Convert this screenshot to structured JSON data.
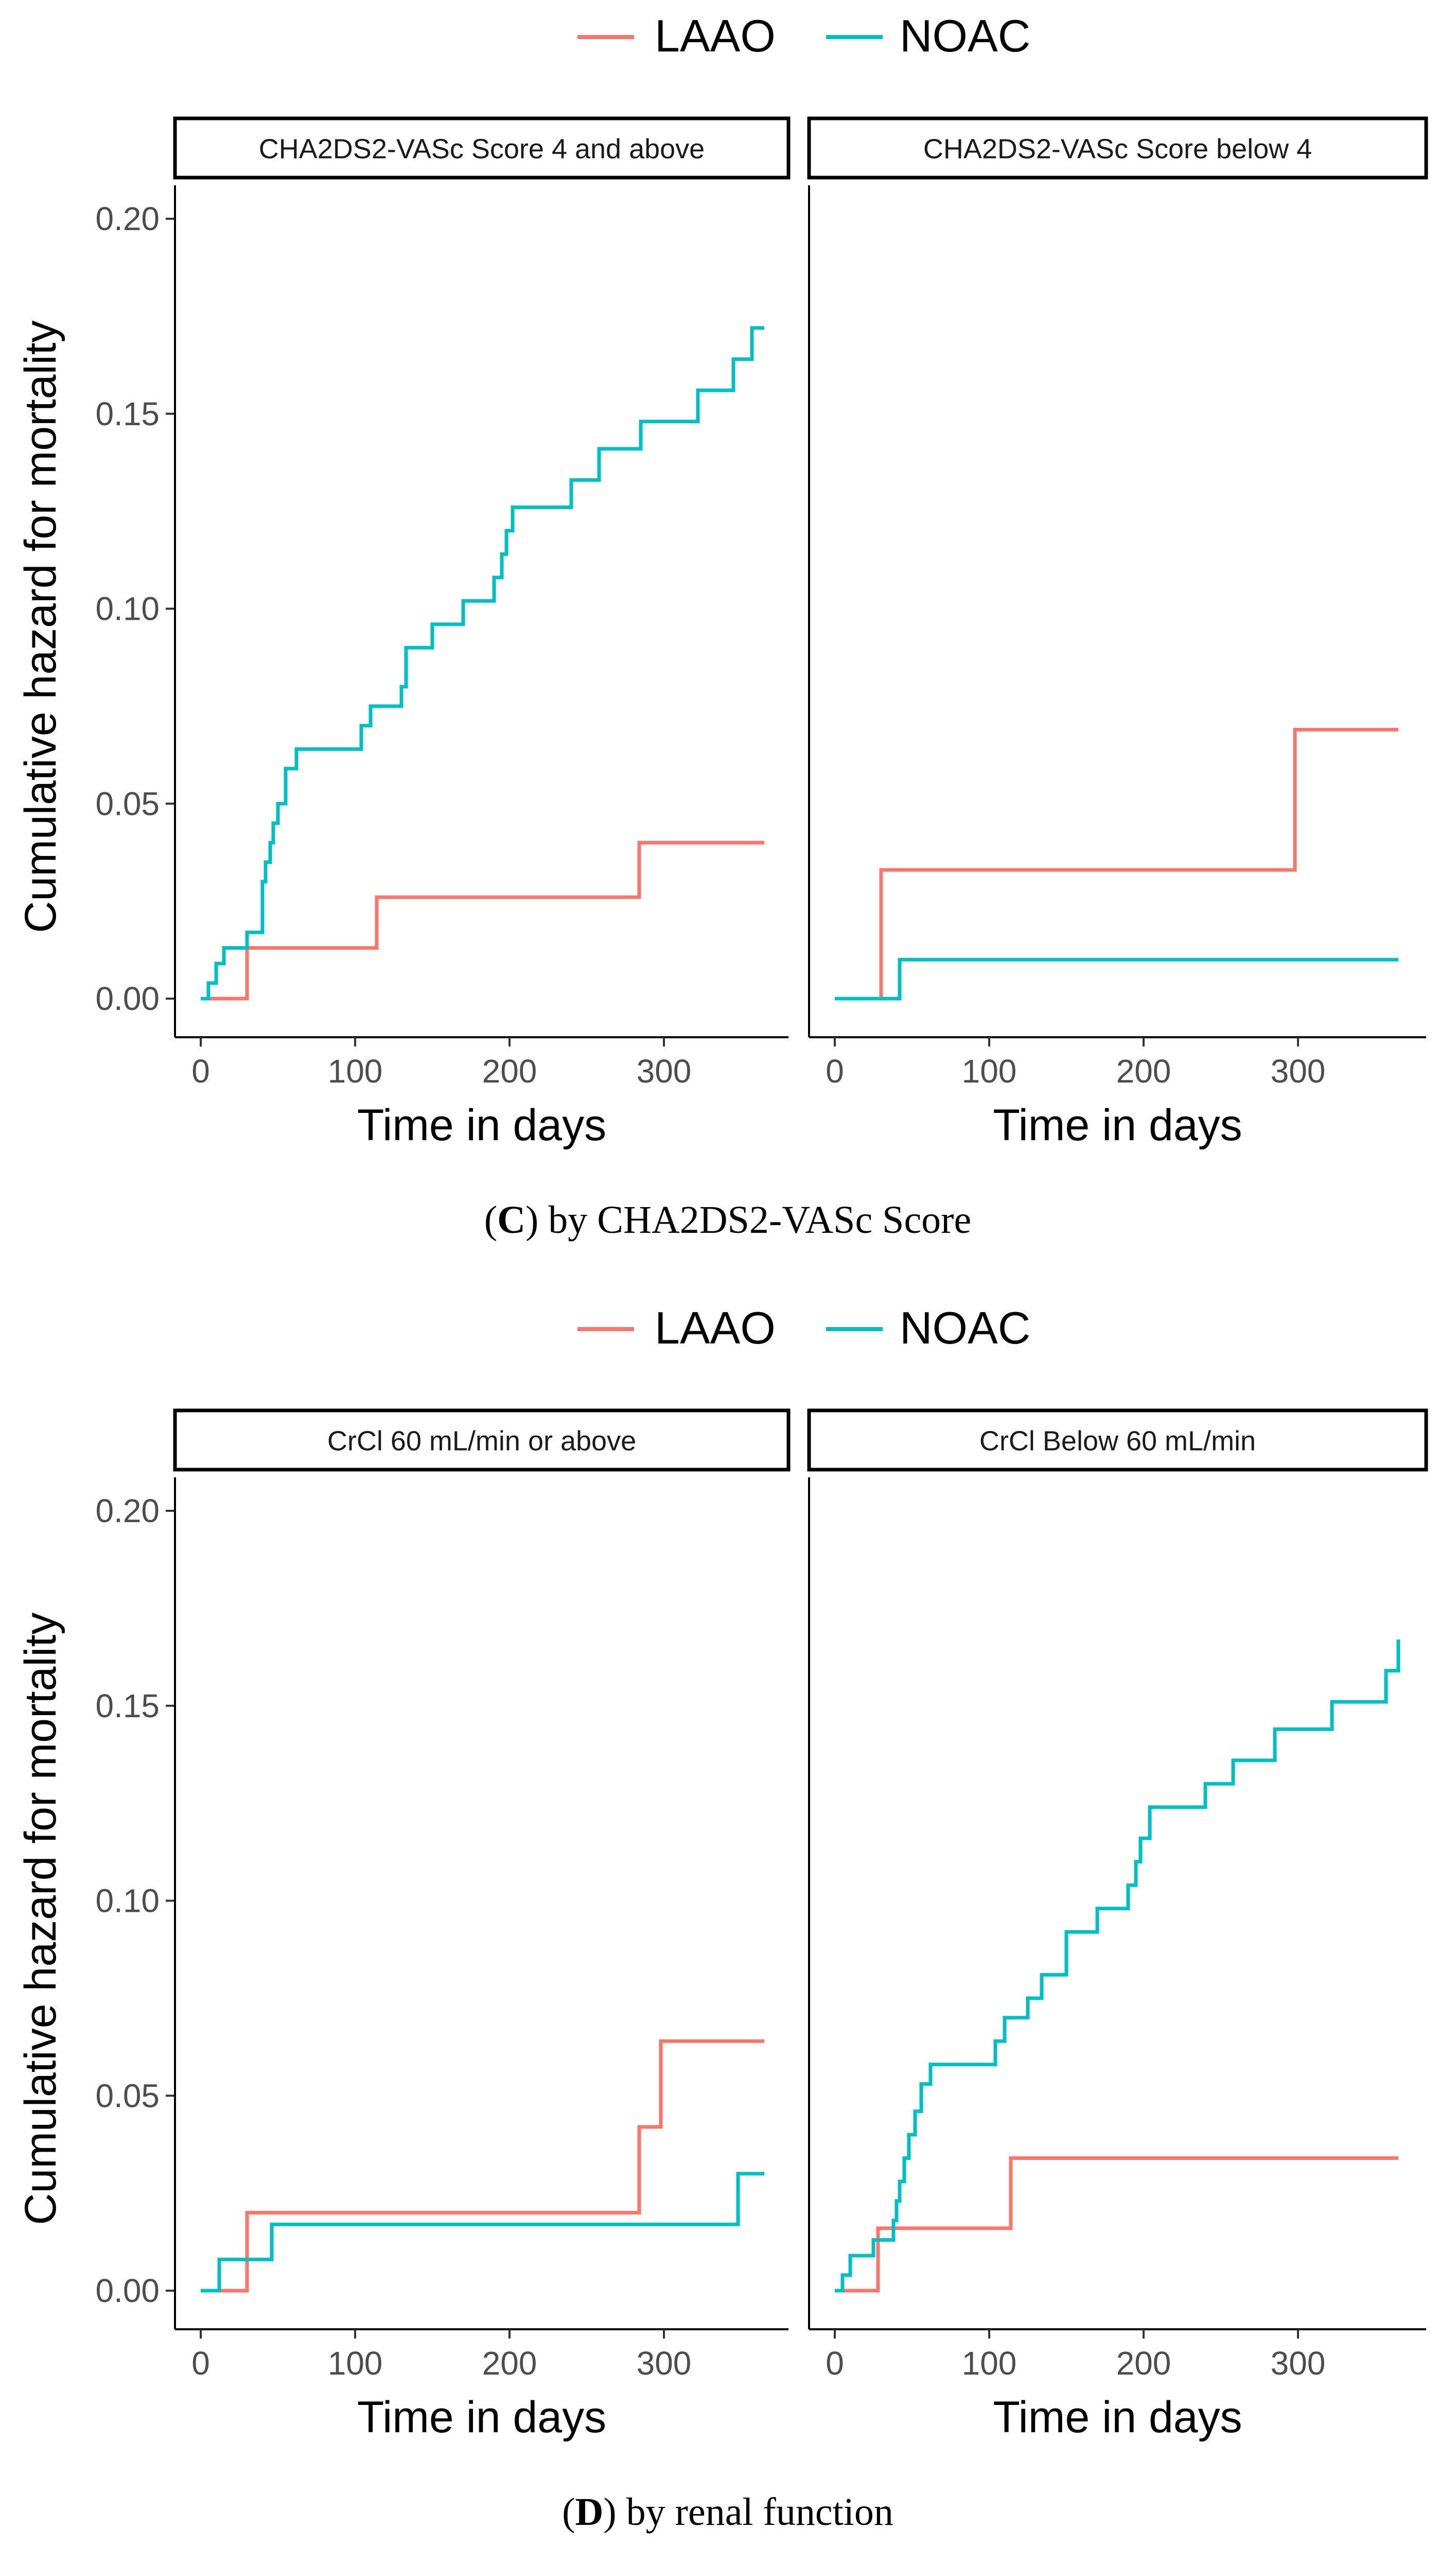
{
  "colors": {
    "LAAO": "#F8766D",
    "NOAC": "#00BFC4"
  },
  "chart_data": [
    {
      "type": "line",
      "step": true,
      "caption_letter": "C",
      "caption_rest": ") by CHA2DS2-VASc Score",
      "legend": [
        "LAAO",
        "NOAC"
      ],
      "xlabel": "Time in days",
      "ylabel": "Cumulative hazard for mortality",
      "xlim": [
        0,
        365
      ],
      "ylim": [
        0,
        0.21
      ],
      "xticks": [
        0,
        100,
        200,
        300
      ],
      "yticks": [
        0.0,
        0.05,
        0.1,
        0.15,
        0.2
      ],
      "ytick_labels": [
        "0.00",
        "0.05",
        "0.10",
        "0.15",
        "0.20"
      ],
      "panels": [
        {
          "title": "CHA2DS2-VASc Score 4 and above",
          "series": [
            {
              "name": "LAAO",
              "x": [
                0,
                30,
                114,
                284,
                365
              ],
              "y": [
                0,
                0.013,
                0.026,
                0.04,
                0.04
              ]
            },
            {
              "name": "NOAC",
              "x": [
                0,
                5,
                10,
                15,
                30,
                40,
                42,
                45,
                47,
                50,
                55,
                62,
                104,
                110,
                130,
                133,
                150,
                170,
                190,
                195,
                198,
                202,
                240,
                258,
                285,
                322,
                345,
                357,
                365
              ],
              "y": [
                0,
                0.004,
                0.009,
                0.013,
                0.017,
                0.03,
                0.035,
                0.04,
                0.045,
                0.05,
                0.059,
                0.064,
                0.07,
                0.075,
                0.08,
                0.09,
                0.096,
                0.102,
                0.108,
                0.114,
                0.12,
                0.126,
                0.133,
                0.141,
                0.148,
                0.156,
                0.164,
                0.172,
                0.172
              ]
            }
          ]
        },
        {
          "title": "CHA2DS2-VASc Score below 4",
          "series": [
            {
              "name": "LAAO",
              "x": [
                0,
                30,
                298,
                365
              ],
              "y": [
                0,
                0.033,
                0.069,
                0.069
              ]
            },
            {
              "name": "NOAC",
              "x": [
                0,
                42,
                365
              ],
              "y": [
                0,
                0.01,
                0.01
              ]
            }
          ]
        }
      ]
    },
    {
      "type": "line",
      "step": true,
      "caption_letter": "D",
      "caption_rest": ") by renal function",
      "legend": [
        "LAAO",
        "NOAC"
      ],
      "xlabel": "Time in days",
      "ylabel": "Cumulative hazard for mortality",
      "xlim": [
        0,
        365
      ],
      "ylim": [
        0,
        0.21
      ],
      "xticks": [
        0,
        100,
        200,
        300
      ],
      "yticks": [
        0.0,
        0.05,
        0.1,
        0.15,
        0.2
      ],
      "ytick_labels": [
        "0.00",
        "0.05",
        "0.10",
        "0.15",
        "0.20"
      ],
      "panels": [
        {
          "title": "CrCl 60 mL/min or above",
          "series": [
            {
              "name": "LAAO",
              "x": [
                0,
                30,
                284,
                298,
                365
              ],
              "y": [
                0,
                0.02,
                0.042,
                0.064,
                0.064
              ]
            },
            {
              "name": "NOAC",
              "x": [
                0,
                12,
                46,
                348,
                365
              ],
              "y": [
                0,
                0.008,
                0.017,
                0.03,
                0.03
              ]
            }
          ]
        },
        {
          "title": "CrCl Below 60 mL/min",
          "series": [
            {
              "name": "LAAO",
              "x": [
                0,
                28,
                114,
                365
              ],
              "y": [
                0,
                0.016,
                0.034,
                0.034
              ]
            },
            {
              "name": "NOAC",
              "x": [
                0,
                5,
                10,
                25,
                38,
                40,
                42,
                45,
                48,
                52,
                56,
                62,
                104,
                110,
                125,
                134,
                150,
                170,
                190,
                195,
                198,
                204,
                240,
                258,
                285,
                322,
                357,
                365
              ],
              "y": [
                0,
                0.004,
                0.009,
                0.013,
                0.018,
                0.023,
                0.028,
                0.034,
                0.04,
                0.046,
                0.053,
                0.058,
                0.064,
                0.07,
                0.075,
                0.081,
                0.092,
                0.098,
                0.104,
                0.11,
                0.116,
                0.124,
                0.13,
                0.136,
                0.144,
                0.151,
                0.159,
                0.167
              ]
            }
          ]
        }
      ]
    }
  ]
}
